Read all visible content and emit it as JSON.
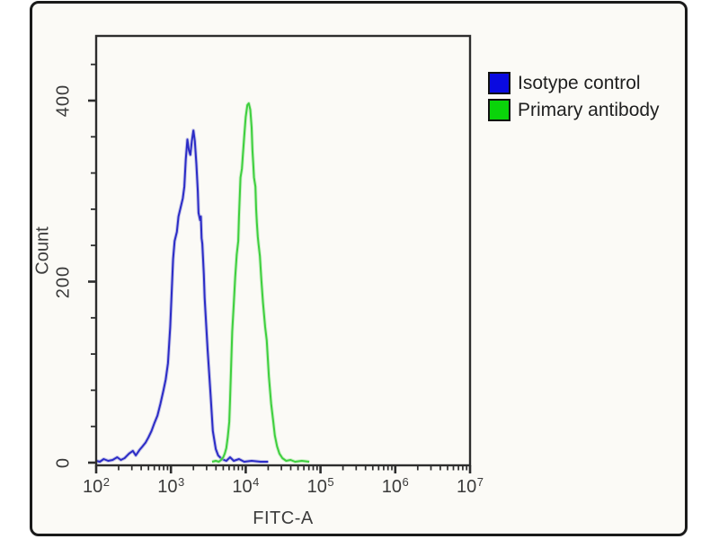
{
  "figure": {
    "background_color": "#ffffff",
    "photo_background": "#fbfaf6",
    "border_color": "#1a1a1a"
  },
  "chart_data": {
    "type": "line",
    "subtype": "flow-cytometry-histogram-overlay",
    "title": "",
    "xlabel": "FITC-A",
    "ylabel": "Count",
    "x_scale": "log",
    "x_tick_exponents": [
      2,
      3,
      4,
      5,
      6,
      7
    ],
    "x_tick_base": "10",
    "x_range": [
      100,
      10000000
    ],
    "ylim": [
      0,
      470
    ],
    "y_major_ticks": [
      0,
      200,
      400
    ],
    "y_minor_ticks": [
      40,
      80,
      120,
      160,
      240,
      280,
      320,
      360,
      440
    ],
    "grid": false,
    "legend_position": "top-right-outside",
    "legend": [
      {
        "label": "Isotype control",
        "swatch_color": "#0a0ae0"
      },
      {
        "label": "Primary antibody",
        "swatch_color": "#0ad40a"
      }
    ],
    "series": [
      {
        "name": "Isotype control",
        "color": "#2b2bc6",
        "halo_color": "#9a9ade",
        "points": [
          [
            100,
            2
          ],
          [
            112,
            1
          ],
          [
            126,
            4
          ],
          [
            145,
            2
          ],
          [
            166,
            3
          ],
          [
            191,
            6
          ],
          [
            214,
            3
          ],
          [
            240,
            5
          ],
          [
            275,
            10
          ],
          [
            309,
            13
          ],
          [
            339,
            8
          ],
          [
            380,
            14
          ],
          [
            417,
            18
          ],
          [
            457,
            22
          ],
          [
            501,
            28
          ],
          [
            550,
            35
          ],
          [
            603,
            44
          ],
          [
            661,
            52
          ],
          [
            724,
            65
          ],
          [
            794,
            80
          ],
          [
            851,
            92
          ],
          [
            912,
            110
          ],
          [
            977,
            150
          ],
          [
            1020,
            185
          ],
          [
            1070,
            225
          ],
          [
            1120,
            245
          ],
          [
            1200,
            255
          ],
          [
            1260,
            272
          ],
          [
            1350,
            282
          ],
          [
            1440,
            292
          ],
          [
            1510,
            305
          ],
          [
            1580,
            335
          ],
          [
            1660,
            357
          ],
          [
            1740,
            345
          ],
          [
            1820,
            340
          ],
          [
            1900,
            355
          ],
          [
            2000,
            367
          ],
          [
            2090,
            355
          ],
          [
            2190,
            330
          ],
          [
            2240,
            315
          ],
          [
            2290,
            300
          ],
          [
            2340,
            276
          ],
          [
            2450,
            268
          ],
          [
            2510,
            272
          ],
          [
            2570,
            248
          ],
          [
            2630,
            242
          ],
          [
            2750,
            208
          ],
          [
            2820,
            182
          ],
          [
            3090,
            125
          ],
          [
            3390,
            75
          ],
          [
            3630,
            35
          ],
          [
            3980,
            15
          ],
          [
            4270,
            8
          ],
          [
            4790,
            4
          ],
          [
            5500,
            2
          ],
          [
            6170,
            6
          ],
          [
            6920,
            2
          ],
          [
            8130,
            4
          ],
          [
            9550,
            1
          ],
          [
            12000,
            2
          ],
          [
            15800,
            1
          ],
          [
            20000,
            1
          ]
        ]
      },
      {
        "name": "Primary antibody",
        "color": "#3ecf3e",
        "halo_color": "#a9e9a4",
        "points": [
          [
            3550,
            1
          ],
          [
            3980,
            2
          ],
          [
            4370,
            1
          ],
          [
            4680,
            3
          ],
          [
            5010,
            6
          ],
          [
            5250,
            10
          ],
          [
            5500,
            16
          ],
          [
            5750,
            28
          ],
          [
            6030,
            45
          ],
          [
            6170,
            70
          ],
          [
            6310,
            95
          ],
          [
            6460,
            120
          ],
          [
            6610,
            145
          ],
          [
            6920,
            175
          ],
          [
            7240,
            205
          ],
          [
            7590,
            230
          ],
          [
            7940,
            245
          ],
          [
            8130,
            272
          ],
          [
            8510,
            315
          ],
          [
            8910,
            325
          ],
          [
            9120,
            338
          ],
          [
            9550,
            360
          ],
          [
            10000,
            382
          ],
          [
            10500,
            395
          ],
          [
            11000,
            397
          ],
          [
            11500,
            390
          ],
          [
            12000,
            370
          ],
          [
            12300,
            345
          ],
          [
            12600,
            330
          ],
          [
            12900,
            315
          ],
          [
            13500,
            305
          ],
          [
            13800,
            280
          ],
          [
            14100,
            265
          ],
          [
            14500,
            250
          ],
          [
            14800,
            242
          ],
          [
            15500,
            228
          ],
          [
            16200,
            202
          ],
          [
            17000,
            177
          ],
          [
            18200,
            150
          ],
          [
            19100,
            135
          ],
          [
            20400,
            95
          ],
          [
            21900,
            65
          ],
          [
            23400,
            45
          ],
          [
            24500,
            30
          ],
          [
            26300,
            18
          ],
          [
            28200,
            10
          ],
          [
            30900,
            5
          ],
          [
            34700,
            2
          ],
          [
            39800,
            3
          ],
          [
            45700,
            1
          ],
          [
            56200,
            2
          ],
          [
            70800,
            1
          ]
        ]
      }
    ]
  }
}
